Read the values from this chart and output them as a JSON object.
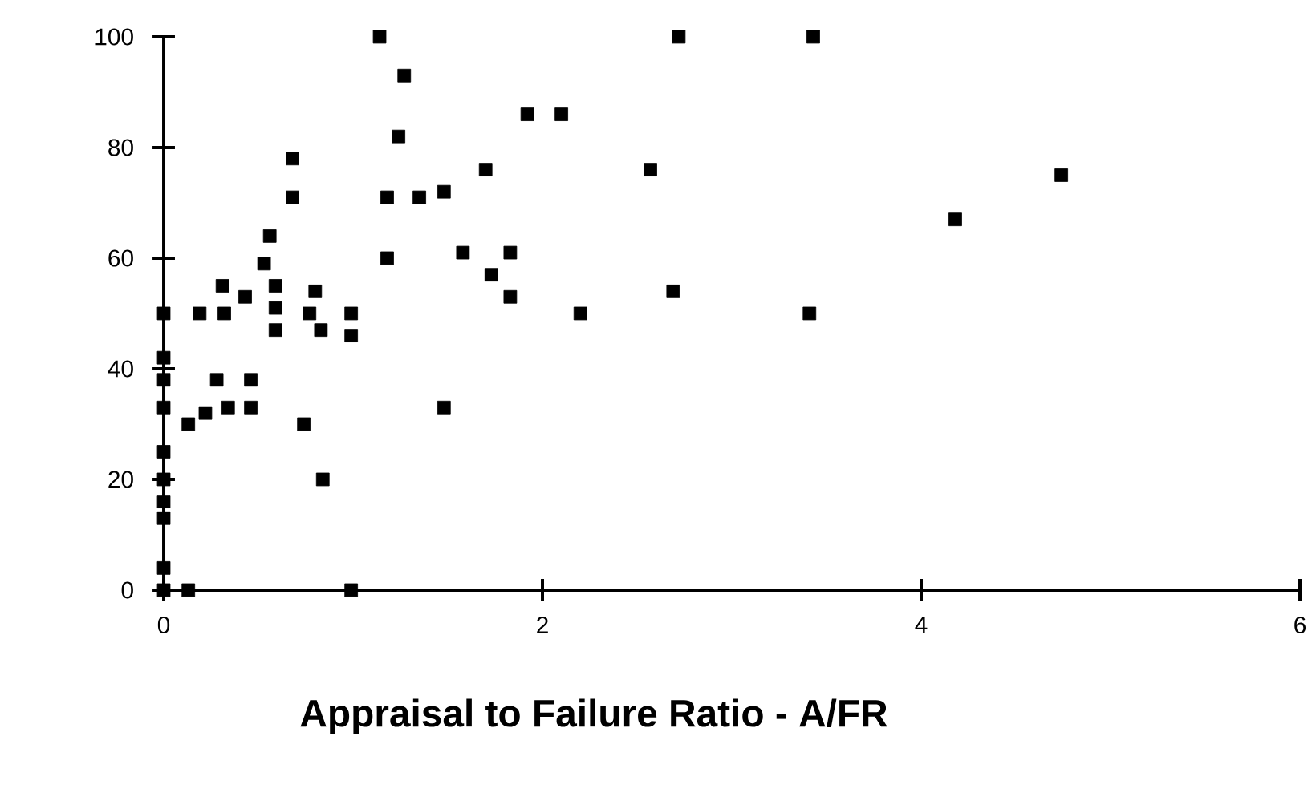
{
  "chart_data": {
    "type": "scatter",
    "xlabel": "Appraisal to Failure Ratio - A/FR",
    "x": [
      0,
      0,
      0,
      0,
      0,
      0,
      0,
      0,
      0,
      0,
      0.13,
      0.99,
      0.19,
      0.32,
      0.31,
      0.43,
      0.59,
      0.59,
      0.59,
      0.53,
      0.56,
      0.68,
      0.68,
      0.8,
      0.77,
      0.83,
      0.99,
      0.99,
      0.28,
      0.46,
      0.46,
      0.34,
      0.22,
      0.13,
      0.74,
      0.84,
      1.14,
      1.27,
      1.24,
      1.92,
      2.1,
      2.72,
      1.7,
      2.57,
      1.18,
      1.35,
      1.48,
      1.18,
      1.58,
      1.83,
      1.73,
      1.83,
      2.69,
      2.2,
      1.48,
      3.43,
      4.74,
      4.18,
      3.41
    ],
    "values": [
      0,
      4,
      13,
      16,
      20,
      25,
      33,
      38,
      42,
      50,
      0,
      0,
      50,
      50,
      55,
      53,
      55,
      51,
      47,
      59,
      64,
      78,
      71,
      54,
      50,
      47,
      50,
      46,
      38,
      38,
      33,
      33,
      32,
      30,
      30,
      20,
      100,
      93,
      82,
      86,
      86,
      100,
      76,
      76,
      71,
      71,
      72,
      60,
      61,
      61,
      57,
      53,
      54,
      50,
      33,
      100,
      75,
      67,
      50
    ],
    "color": "#000000",
    "marker": "square",
    "xlim": [
      0,
      6
    ],
    "ylim": [
      0,
      100
    ],
    "xticks": [
      0,
      2,
      4,
      6
    ],
    "yticks": [
      0,
      20,
      40,
      60,
      80,
      100
    ],
    "grid": false
  }
}
